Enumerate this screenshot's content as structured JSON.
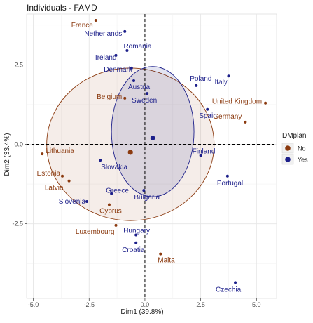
{
  "chart_data": {
    "type": "scatter",
    "title": "Individuals - FAMD",
    "xlabel": "Dim1 (39.8%)",
    "ylabel": "Dim2 (33.4%)",
    "xlim": [
      -5.3,
      5.9
    ],
    "ylim": [
      -4.85,
      4.1
    ],
    "xticks": [
      -5.0,
      -2.5,
      0.0,
      2.5,
      5.0
    ],
    "xtick_labels": [
      "-5.0",
      "-2.5",
      "0.0",
      "2.5",
      "5.0"
    ],
    "yticks": [
      -2.5,
      0.0,
      2.5
    ],
    "ytick_labels": [
      "-2.5",
      "0.0",
      "2.5"
    ],
    "grid": true,
    "legend": {
      "title": "DMplan",
      "placement": "right",
      "items": [
        {
          "label": "No",
          "color": "#8B3A0F"
        },
        {
          "label": "Yes",
          "color": "#1C1F8A"
        }
      ]
    },
    "colors": {
      "No": "#8B3A0F",
      "Yes": "#1C1F8A",
      "grid": "#e6e6e6",
      "panel": "#ffffff"
    },
    "series": [
      {
        "name": "No",
        "points": [
          {
            "label": "France",
            "x": -2.2,
            "y": 3.9
          },
          {
            "label": "Belgium",
            "x": -0.9,
            "y": 1.45
          },
          {
            "label": "United Kingdom",
            "x": 5.4,
            "y": 1.3
          },
          {
            "label": "Germany",
            "x": 4.5,
            "y": 0.7
          },
          {
            "label": "Lithuania",
            "x": -4.6,
            "y": -0.3
          },
          {
            "label": "Estonia",
            "x": -3.7,
            "y": -1.0
          },
          {
            "label": "Latvia",
            "x": -3.4,
            "y": -1.15
          },
          {
            "label": "Cyprus",
            "x": -1.6,
            "y": -1.9
          },
          {
            "label": "Luxembourg",
            "x": -1.3,
            "y": -2.55
          },
          {
            "label": "Malta",
            "x": 0.7,
            "y": -3.45
          }
        ],
        "centroid": {
          "x": -0.65,
          "y": -0.25
        },
        "ellipse": {
          "cx": -0.65,
          "cy": 0.0,
          "rx": 3.75,
          "ry": 2.4
        }
      },
      {
        "name": "Yes",
        "points": [
          {
            "label": "Netherlands",
            "x": -0.9,
            "y": 3.55
          },
          {
            "label": "Romania",
            "x": -0.8,
            "y": 2.95
          },
          {
            "label": "Ireland",
            "x": -1.3,
            "y": 2.8
          },
          {
            "label": "Denmark",
            "x": -0.6,
            "y": 2.4
          },
          {
            "label": "Austria",
            "x": -0.5,
            "y": 2.0
          },
          {
            "label": "Poland",
            "x": 2.3,
            "y": 1.85
          },
          {
            "label": "Italy",
            "x": 3.75,
            "y": 2.15
          },
          {
            "label": "Sweden",
            "x": 0.1,
            "y": 1.6
          },
          {
            "label": "Spain",
            "x": 2.8,
            "y": 1.1
          },
          {
            "label": "Finland",
            "x": 2.5,
            "y": -0.35
          },
          {
            "label": "Slovakia",
            "x": -2.0,
            "y": -0.5
          },
          {
            "label": "Portugal",
            "x": 3.7,
            "y": -1.0
          },
          {
            "label": "Bulgaria",
            "x": -0.05,
            "y": -1.45
          },
          {
            "label": "Greece",
            "x": -1.5,
            "y": -1.55
          },
          {
            "label": "Slovenia",
            "x": -2.6,
            "y": -1.8
          },
          {
            "label": "Hungary",
            "x": -0.4,
            "y": -2.85
          },
          {
            "label": "Croatia",
            "x": -0.4,
            "y": -3.1
          },
          {
            "label": "Czechia",
            "x": 4.05,
            "y": -4.35
          }
        ],
        "centroid": {
          "x": 0.35,
          "y": 0.2
        },
        "ellipse": {
          "cx": 0.35,
          "cy": 0.4,
          "rx": 1.85,
          "ry": 2.05
        }
      }
    ]
  }
}
